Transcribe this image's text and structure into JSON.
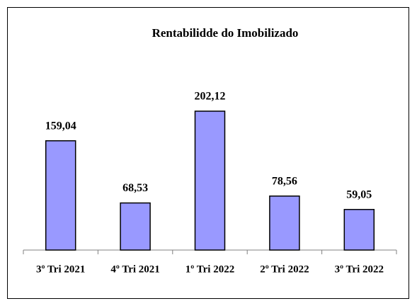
{
  "chart_data": {
    "type": "bar",
    "title": "Rentabilidde do Imobilizado",
    "categories": [
      "3º Tri 2021",
      "4º Tri 2021",
      "1º Tri 2022",
      "2º Tri 2022",
      "3º Tri 2022"
    ],
    "values": [
      159.04,
      68.53,
      202.12,
      78.56,
      59.05
    ],
    "value_labels": [
      "159,04",
      "68,53",
      "202,12",
      "78,56",
      "59,05"
    ],
    "color": "#9999ff",
    "ylim": [
      0,
      250
    ]
  }
}
